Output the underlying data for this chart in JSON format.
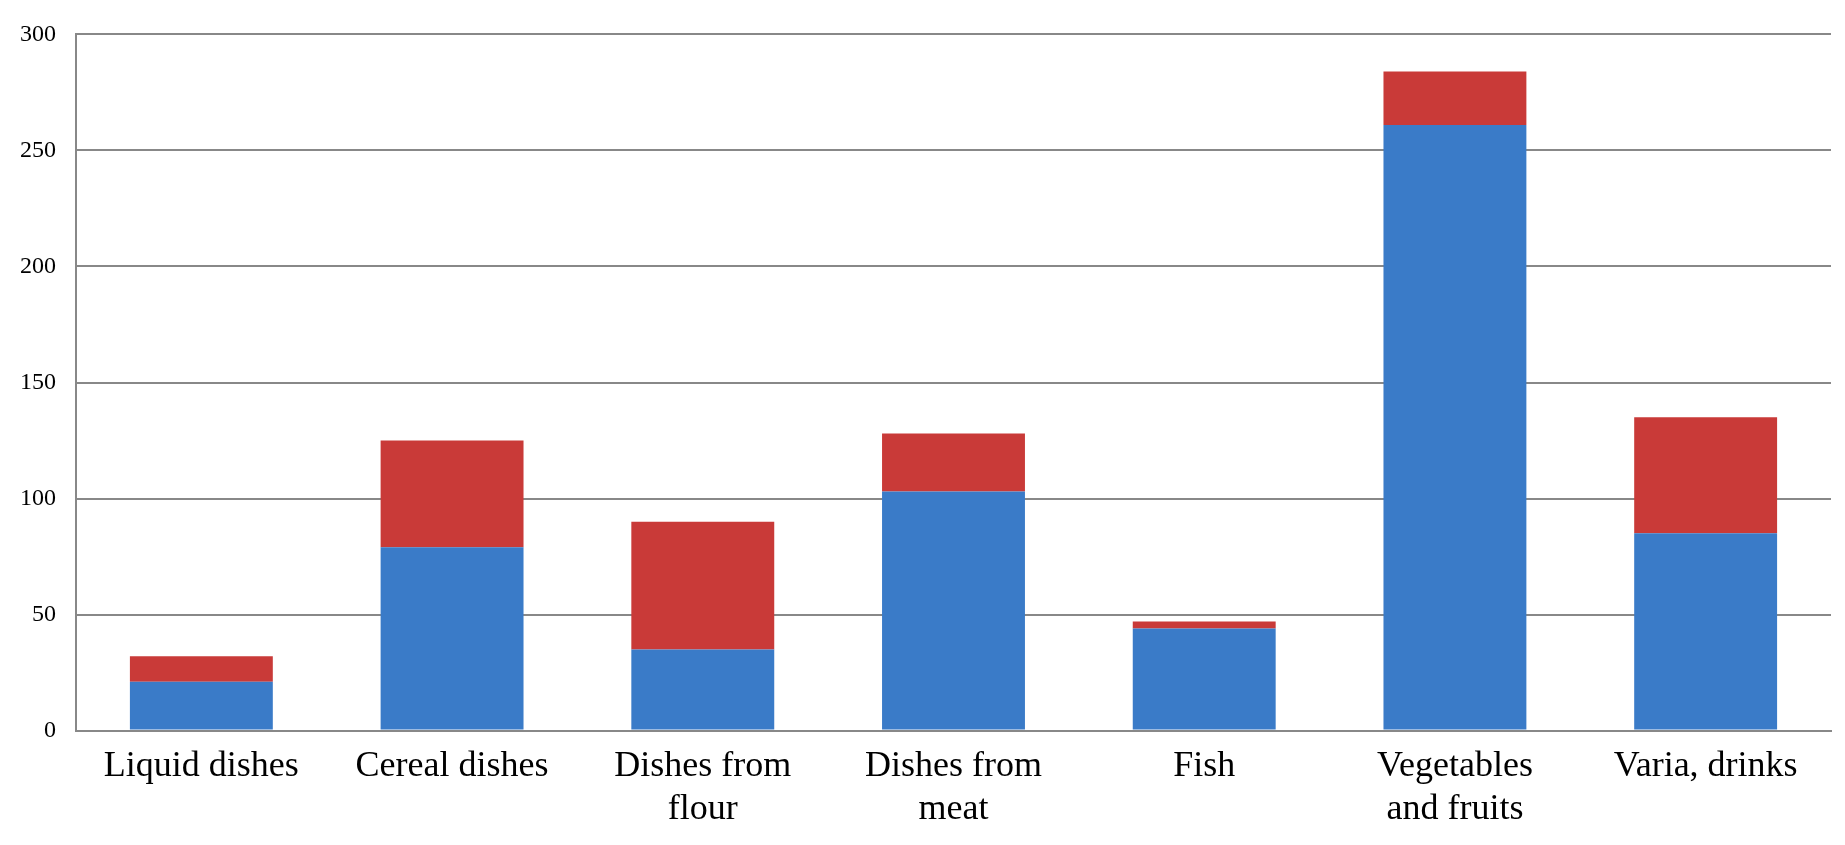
{
  "chart_data": {
    "type": "bar",
    "stacked": true,
    "categories": [
      "Liquid dishes",
      "Cereal dishes",
      "Dishes from flour",
      "Dishes from meat",
      "Fish",
      "Vegetables and fruits",
      "Varia, drinks"
    ],
    "series": [
      {
        "color": "#3a7bc8",
        "values": [
          21,
          79,
          35,
          103,
          44,
          261,
          85
        ]
      },
      {
        "color": "#c93a38",
        "values": [
          11,
          46,
          55,
          25,
          3,
          23,
          50
        ]
      }
    ],
    "ylim": [
      0,
      300
    ],
    "yticks": [
      0,
      50,
      100,
      150,
      200,
      250,
      300
    ],
    "grid": "y",
    "legend": false
  }
}
